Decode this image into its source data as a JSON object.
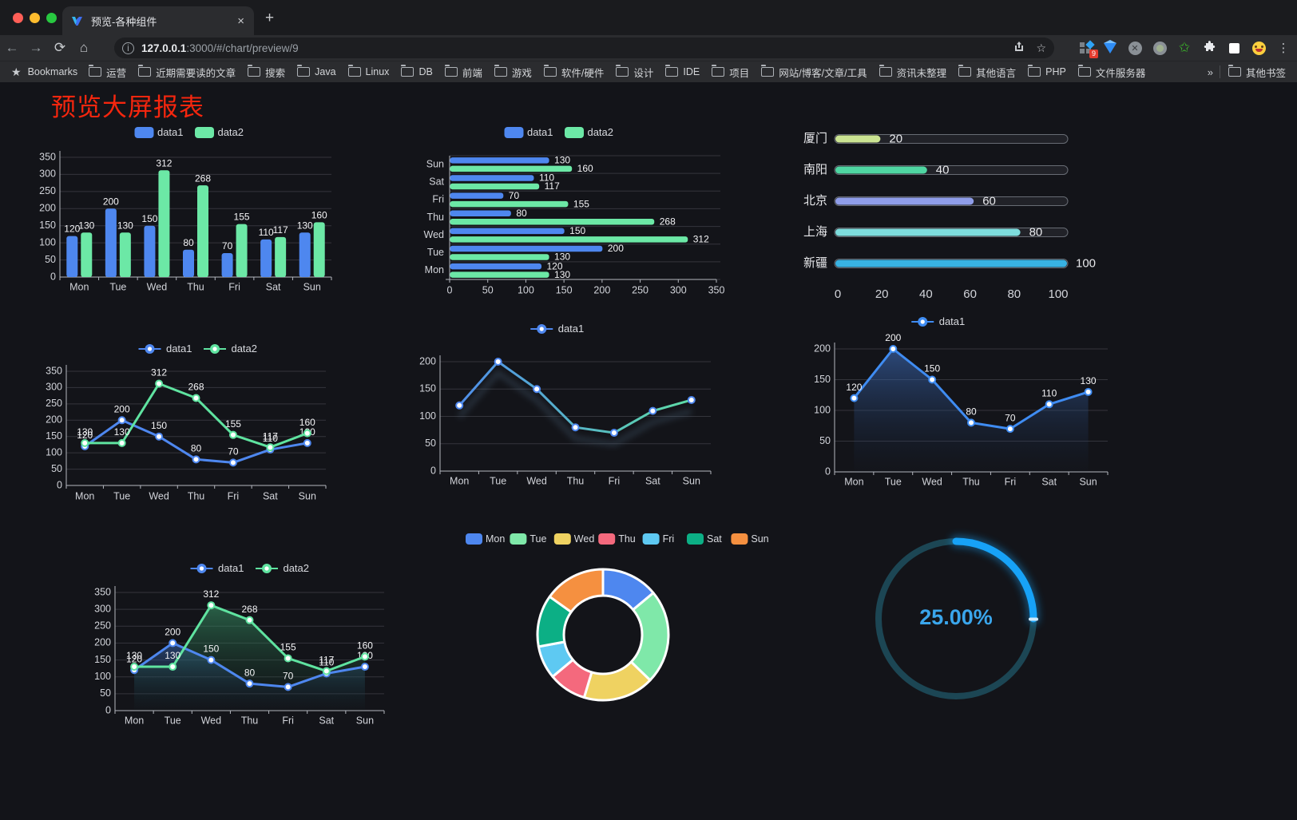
{
  "browser": {
    "tab_title": "预览-各种组件",
    "url_host": "127.0.0.1",
    "url_rest": ":3000/#/chart/preview/9",
    "new_tab_label": "+",
    "close_label": "×",
    "extension_badge": "9",
    "menu_dots": "⋮",
    "bookmarks_label": "Bookmarks",
    "bookmarks": [
      "运营",
      "近期需要读的文章",
      "搜索",
      "Java",
      "Linux",
      "DB",
      "前端",
      "游戏",
      "软件/硬件",
      "设计",
      "IDE",
      "项目",
      "网站/博客/文章/工具",
      "资讯未整理",
      "其他语言",
      "PHP",
      "文件服务器"
    ],
    "bookmarks_overflow": "»",
    "other_bookmarks": "其他书签"
  },
  "page": {
    "title": "预览大屏报表",
    "title_color": "#f5260e"
  },
  "chart_data": [
    {
      "id": "bars_vertical",
      "type": "bar",
      "categories": [
        "Mon",
        "Tue",
        "Wed",
        "Thu",
        "Fri",
        "Sat",
        "Sun"
      ],
      "series": [
        {
          "name": "data1",
          "color": "#4e87ef",
          "values": [
            120,
            200,
            150,
            80,
            70,
            110,
            130
          ]
        },
        {
          "name": "data2",
          "color": "#6ce8a6",
          "values": [
            130,
            130,
            312,
            268,
            155,
            117,
            160
          ]
        }
      ],
      "ylim": [
        0,
        350
      ],
      "ytick_step": 50,
      "legend_position": "top",
      "grid": true,
      "labels": true
    },
    {
      "id": "bars_horizontal",
      "type": "bar-horizontal",
      "categories": [
        "Mon",
        "Tue",
        "Wed",
        "Thu",
        "Fri",
        "Sat",
        "Sun"
      ],
      "series": [
        {
          "name": "data1",
          "color": "#4e87ef",
          "values": [
            120,
            200,
            150,
            80,
            70,
            110,
            130
          ]
        },
        {
          "name": "data2",
          "color": "#6ce8a6",
          "values": [
            130,
            130,
            312,
            268,
            155,
            117,
            160
          ]
        }
      ],
      "xlim": [
        0,
        350
      ],
      "xtick_step": 50,
      "legend_position": "top",
      "grid": true,
      "labels": true
    },
    {
      "id": "progress_bars",
      "type": "progress",
      "items": [
        {
          "label": "厦门",
          "value": 20,
          "color": "#cbe492"
        },
        {
          "label": "南阳",
          "value": 40,
          "color": "#4fd6a2"
        },
        {
          "label": "北京",
          "value": 60,
          "color": "#8f9de9"
        },
        {
          "label": "上海",
          "value": 80,
          "color": "#7edddd"
        },
        {
          "label": "新疆",
          "value": 100,
          "color": "#38b2e2"
        }
      ],
      "max": 100,
      "xticks": [
        0,
        20,
        40,
        60,
        80,
        100
      ]
    },
    {
      "id": "lines_two",
      "type": "line",
      "categories": [
        "Mon",
        "Tue",
        "Wed",
        "Thu",
        "Fri",
        "Sat",
        "Sun"
      ],
      "series": [
        {
          "name": "data1",
          "color": "#4e87ef",
          "values": [
            120,
            200,
            150,
            80,
            70,
            110,
            130
          ]
        },
        {
          "name": "data2",
          "color": "#5fe3a0",
          "values": [
            130,
            130,
            312,
            268,
            155,
            117,
            160
          ]
        }
      ],
      "ylim": [
        0,
        350
      ],
      "ytick_step": 50,
      "legend_position": "top",
      "grid": true,
      "labels": true
    },
    {
      "id": "line_gradient",
      "type": "line",
      "variant": "gradient",
      "categories": [
        "Mon",
        "Tue",
        "Wed",
        "Thu",
        "Fri",
        "Sat",
        "Sun"
      ],
      "series": [
        {
          "name": "data1",
          "color": "#4e87ef",
          "gradient": [
            "#4e87ef",
            "#5fe3a0"
          ],
          "values": [
            120,
            200,
            150,
            80,
            70,
            110,
            130
          ]
        }
      ],
      "ylim": [
        0,
        200
      ],
      "ytick_step": 50,
      "legend_position": "top",
      "grid": true,
      "labels": false
    },
    {
      "id": "area_single",
      "type": "area",
      "categories": [
        "Mon",
        "Tue",
        "Wed",
        "Thu",
        "Fri",
        "Sat",
        "Sun"
      ],
      "series": [
        {
          "name": "data1",
          "color": "#3f8cf2",
          "fill": [
            "rgba(62,110,190,0.6)",
            "rgba(25,45,75,0.03)"
          ],
          "values": [
            120,
            200,
            150,
            80,
            70,
            110,
            130
          ]
        }
      ],
      "ylim": [
        0,
        200
      ],
      "ytick_step": 50,
      "legend_position": "top",
      "grid": true,
      "labels": true
    },
    {
      "id": "area_two",
      "type": "area",
      "categories": [
        "Mon",
        "Tue",
        "Wed",
        "Thu",
        "Fri",
        "Sat",
        "Sun"
      ],
      "series": [
        {
          "name": "data1",
          "color": "#4e87ef",
          "fill": [
            "rgba(60,110,190,0.5)",
            "rgba(20,40,70,0.02)"
          ],
          "values": [
            120,
            200,
            150,
            80,
            70,
            110,
            130
          ]
        },
        {
          "name": "data2",
          "color": "#5fe3a0",
          "fill": [
            "rgba(60,160,110,0.55)",
            "rgba(20,60,40,0.02)"
          ],
          "values": [
            130,
            130,
            312,
            268,
            155,
            117,
            160
          ]
        }
      ],
      "ylim": [
        0,
        350
      ],
      "ytick_step": 50,
      "legend_position": "top",
      "grid": true,
      "labels": true
    },
    {
      "id": "donut",
      "type": "pie",
      "labels": [
        "Mon",
        "Tue",
        "Wed",
        "Thu",
        "Fri",
        "Sat",
        "Sun"
      ],
      "values": [
        120,
        200,
        150,
        80,
        70,
        110,
        130
      ],
      "colors": [
        "#4e87ef",
        "#7fe8a9",
        "#efd261",
        "#f4697d",
        "#5ec9f2",
        "#0caf85",
        "#f59040"
      ],
      "inner_radius_ratio": 0.6,
      "legend_position": "top"
    },
    {
      "id": "gauge",
      "type": "gauge",
      "value": 25,
      "max": 100,
      "display": "25.00%",
      "color": "#17a2f7",
      "track_color": "#1c4654",
      "text_color": "#3aa6ec"
    }
  ]
}
